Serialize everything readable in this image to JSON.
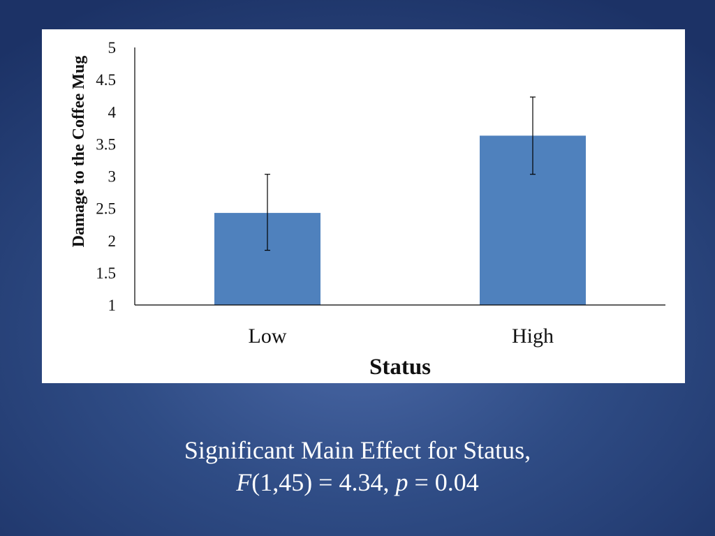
{
  "chart_data": {
    "type": "bar",
    "categories": [
      "Low",
      "High"
    ],
    "values": [
      2.43,
      3.63
    ],
    "error_bars": [
      [
        1.85,
        3.03
      ],
      [
        3.03,
        4.23
      ]
    ],
    "xlabel": "Status",
    "ylabel": "Damage to the Coffee Mug",
    "ylim": [
      1,
      5
    ],
    "yticks": [
      "1",
      "1.5",
      "2",
      "2.5",
      "3",
      "3.5",
      "4",
      "4.5",
      "5"
    ],
    "bar_color": "#4f81bd",
    "grid": false,
    "legend": "none"
  },
  "caption": {
    "line1": "Significant Main Effect for Status,",
    "stat_F": "F",
    "stat_F_rest": "(1,45) = 4.34, ",
    "stat_p": "p",
    "stat_p_rest": " = 0.04"
  }
}
